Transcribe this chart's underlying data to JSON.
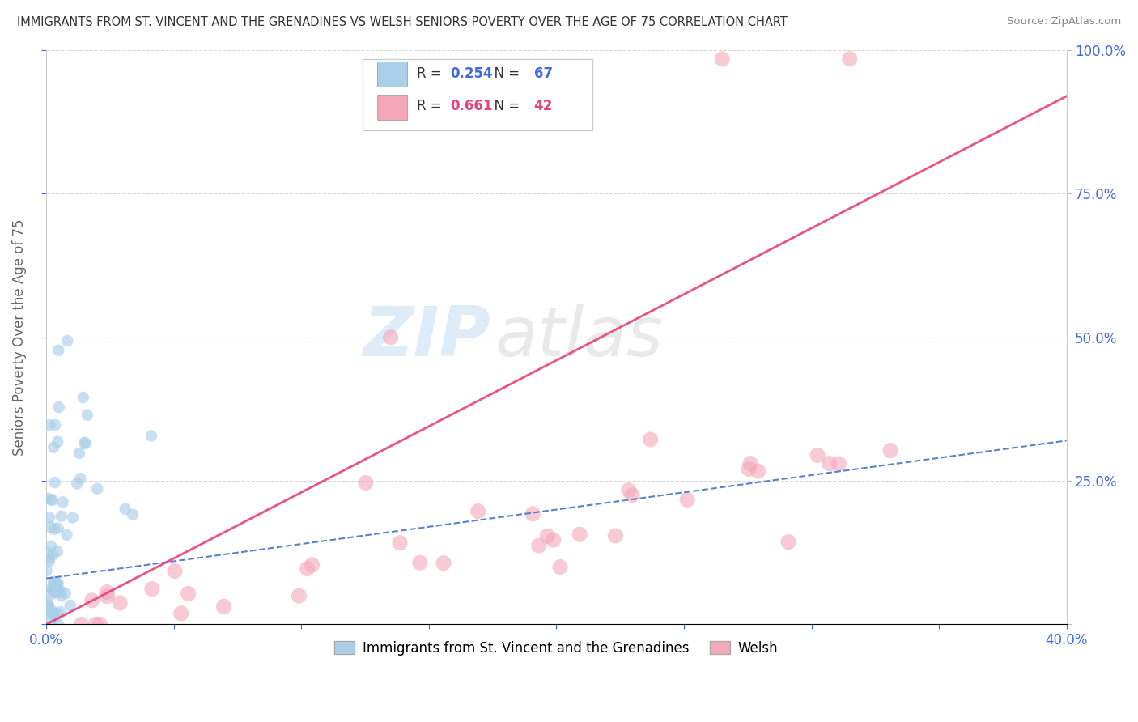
{
  "title": "IMMIGRANTS FROM ST. VINCENT AND THE GRENADINES VS WELSH SENIORS POVERTY OVER THE AGE OF 75 CORRELATION CHART",
  "source": "Source: ZipAtlas.com",
  "ylabel": "Seniors Poverty Over the Age of 75",
  "xlim": [
    0.0,
    0.4
  ],
  "ylim": [
    0.0,
    1.0
  ],
  "xticks": [
    0.0,
    0.05,
    0.1,
    0.15,
    0.2,
    0.25,
    0.3,
    0.35,
    0.4
  ],
  "yticks": [
    0.0,
    0.25,
    0.5,
    0.75,
    1.0
  ],
  "xtick_labels": [
    "0.0%",
    "",
    "",
    "",
    "",
    "",
    "",
    "",
    "40.0%"
  ],
  "ytick_labels_left": [
    "",
    "",
    "",
    "",
    ""
  ],
  "ytick_labels_right": [
    "",
    "25.0%",
    "50.0%",
    "75.0%",
    "100.0%"
  ],
  "blue_R": 0.254,
  "blue_N": 67,
  "pink_R": 0.661,
  "pink_N": 42,
  "blue_dot_color": "#aacfe8",
  "pink_dot_color": "#f4a7b9",
  "blue_line_color": "#3a6fbf",
  "pink_line_color": "#e8407a",
  "blue_label": "Immigrants from St. Vincent and the Grenadines",
  "pink_label": "Welsh",
  "watermark_zip": "ZIP",
  "watermark_atlas": "atlas",
  "bg_color": "#ffffff",
  "grid_color": "#d8d8d8",
  "title_color": "#333333",
  "source_color": "#888888",
  "ylabel_color": "#666666",
  "tick_label_color": "#4169E1",
  "legend_border_color": "#cccccc",
  "blue_legend_color": "#aacfe8",
  "pink_legend_color": "#f4a7b9"
}
